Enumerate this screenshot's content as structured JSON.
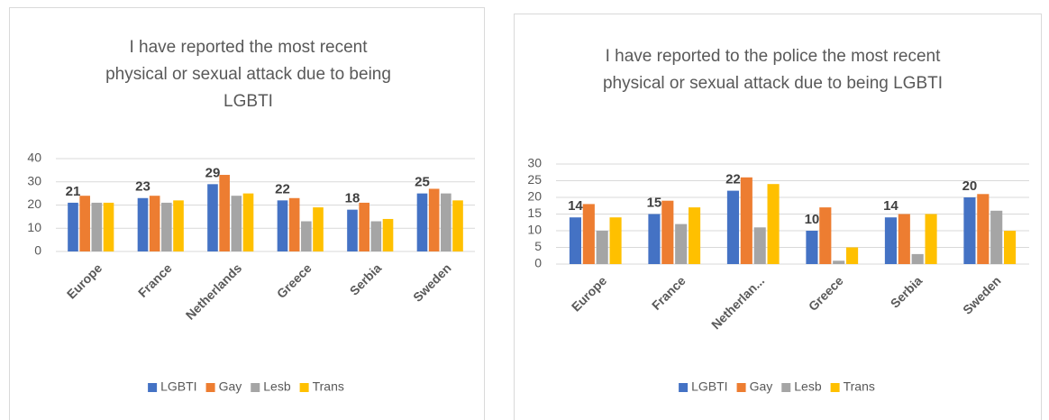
{
  "chart_data": [
    {
      "type": "bar",
      "title": "I have reported the most recent physical or sexual attack due to being LGBTI",
      "categories": [
        "Europe",
        "France",
        "Netherlands",
        "Greece",
        "Serbia",
        "Sweden"
      ],
      "series": [
        {
          "name": "LGBTI",
          "color": "#4472c4",
          "values": [
            21,
            23,
            29,
            22,
            18,
            25
          ],
          "data_labels": true
        },
        {
          "name": "Gay",
          "color": "#ed7d31",
          "values": [
            24,
            24,
            33,
            23,
            21,
            27
          ]
        },
        {
          "name": "Lesb",
          "color": "#a5a5a5",
          "values": [
            21,
            21,
            24,
            13,
            13,
            25
          ]
        },
        {
          "name": "Trans",
          "color": "#ffc000",
          "values": [
            21,
            22,
            25,
            19,
            14,
            22
          ]
        }
      ],
      "ylim": [
        0,
        40
      ],
      "yticks": [
        0,
        10,
        20,
        30,
        40
      ],
      "grid": true,
      "legend": "bottom"
    },
    {
      "type": "bar",
      "title": "I have reported to the police the most recent physical or sexual attack due to being LGBTI",
      "categories": [
        "Europe",
        "France",
        "Netherlan...",
        "Greece",
        "Serbia",
        "Sweden"
      ],
      "series": [
        {
          "name": "LGBTI",
          "color": "#4472c4",
          "values": [
            14,
            15,
            22,
            10,
            14,
            20
          ],
          "data_labels": true
        },
        {
          "name": "Gay",
          "color": "#ed7d31",
          "values": [
            18,
            19,
            26,
            17,
            15,
            21
          ]
        },
        {
          "name": "Lesb",
          "color": "#a5a5a5",
          "values": [
            10,
            12,
            11,
            1,
            3,
            16
          ]
        },
        {
          "name": "Trans",
          "color": "#ffc000",
          "values": [
            14,
            17,
            24,
            5,
            15,
            10
          ]
        }
      ],
      "ylim": [
        0,
        30
      ],
      "yticks": [
        0,
        5,
        10,
        15,
        20,
        25,
        30
      ],
      "grid": true,
      "legend": "bottom"
    }
  ]
}
